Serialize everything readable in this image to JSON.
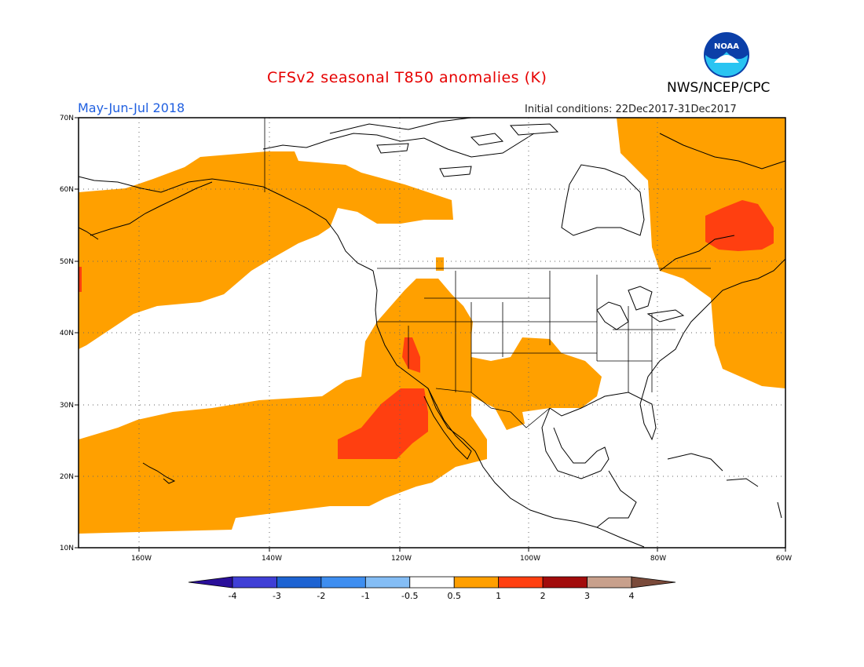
{
  "header": {
    "title": "CFSv2 seasonal T850 anomalies (K)",
    "period": "May-Jun-Jul 2018",
    "initial_conditions": "Initial conditions: 22Dec2017-31Dec2017",
    "agency": "NWS/NCEP/CPC",
    "logo_text": "NOAA"
  },
  "map": {
    "lat_labels": [
      "70N",
      "60N",
      "50N",
      "40N",
      "30N",
      "20N",
      "10N"
    ],
    "lon_labels": [
      "160W",
      "140W",
      "120W",
      "100W",
      "80W",
      "60W"
    ],
    "lon_range": [
      -177,
      -60
    ],
    "lat_range": [
      10,
      70
    ],
    "grid": "dotted 10-degree lines"
  },
  "colorbar": {
    "labels": [
      "-4",
      "-3",
      "-2",
      "-1",
      "-0.5",
      "0.5",
      "1",
      "2",
      "3",
      "4"
    ],
    "colors": [
      "#2a0f9a",
      "#3f3fd6",
      "#1d63d2",
      "#3e8ef0",
      "#84bdf5",
      "#ffffff",
      "#ff9f00",
      "#ff3f10",
      "#a20c0c",
      "#c8a08c",
      "#7a4a3a"
    ]
  },
  "legend_meaning": {
    "orange": "0.5 to 1 K",
    "red": "1 to 2 K"
  }
}
